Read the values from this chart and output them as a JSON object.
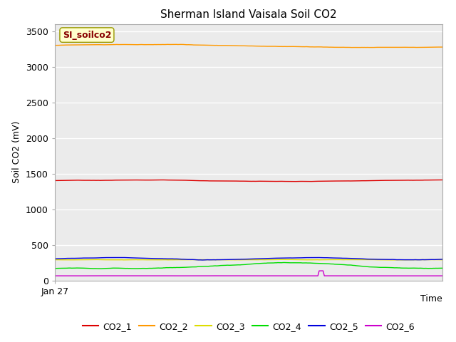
{
  "title": "Sherman Island Vaisala Soil CO2",
  "ylabel": "Soil CO2 (mV)",
  "xlabel": "Time",
  "xlabel_tick": "Jan 27",
  "annotation_label": "SI_soilco2",
  "ylim": [
    0,
    3600
  ],
  "yticks": [
    0,
    500,
    1000,
    1500,
    2000,
    2500,
    3000,
    3500
  ],
  "series_colors": {
    "CO2_1": "#dd0000",
    "CO2_2": "#ff9900",
    "CO2_3": "#dddd00",
    "CO2_4": "#00dd00",
    "CO2_5": "#0000dd",
    "CO2_6": "#cc00cc"
  },
  "background_color": "#ebebeb",
  "figure_bg": "#ffffff",
  "annotation_box_color": "#ffffcc",
  "annotation_box_edge": "#999900",
  "annotation_text_color": "#880000",
  "grid_color": "#ffffff",
  "spine_color": "#aaaaaa"
}
